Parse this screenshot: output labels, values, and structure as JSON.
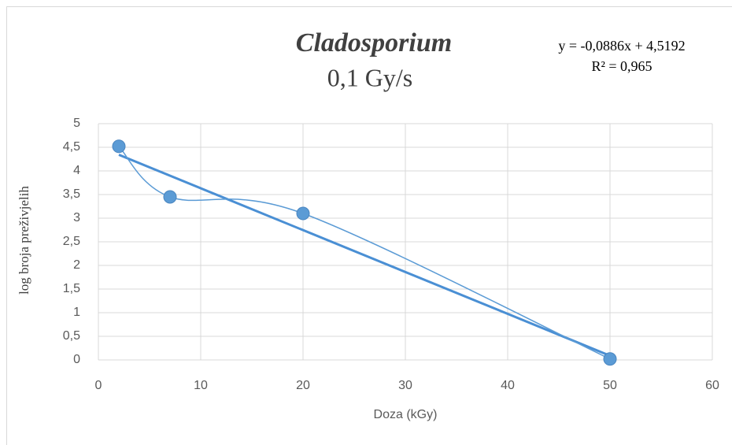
{
  "chart_data": {
    "type": "scatter",
    "title": "Cladosporium",
    "subtitle": "0,1 Gy/s",
    "x_label": "Doza (kGy)",
    "y_label": "log broja preživjelih",
    "series": [
      {
        "name": "Cladosporium",
        "color": "#5b9bd5",
        "x": [
          2,
          7,
          20,
          50
        ],
        "values": [
          4.52,
          3.45,
          3.1,
          0.02
        ],
        "smooth": true
      }
    ],
    "trendline": {
      "equation": "y = -0,0886x + 4,5192",
      "r2": "R² = 0,965",
      "slope": -0.0886,
      "intercept": 4.5192,
      "color": "#4a8fd4"
    },
    "xlim": [
      0,
      60
    ],
    "xticks": [
      0,
      10,
      20,
      30,
      40,
      50,
      60
    ],
    "ylim": [
      0,
      5
    ],
    "yticks": [
      0,
      {
        "value": 0.5,
        "label": "0,5"
      },
      1,
      {
        "value": 1.5,
        "label": "1,5"
      },
      2,
      {
        "value": 2.5,
        "label": "2,5"
      },
      3,
      {
        "value": 3.5,
        "label": "3,5"
      },
      4,
      {
        "value": 4.5,
        "label": "4,5"
      },
      5
    ],
    "grid": true
  }
}
